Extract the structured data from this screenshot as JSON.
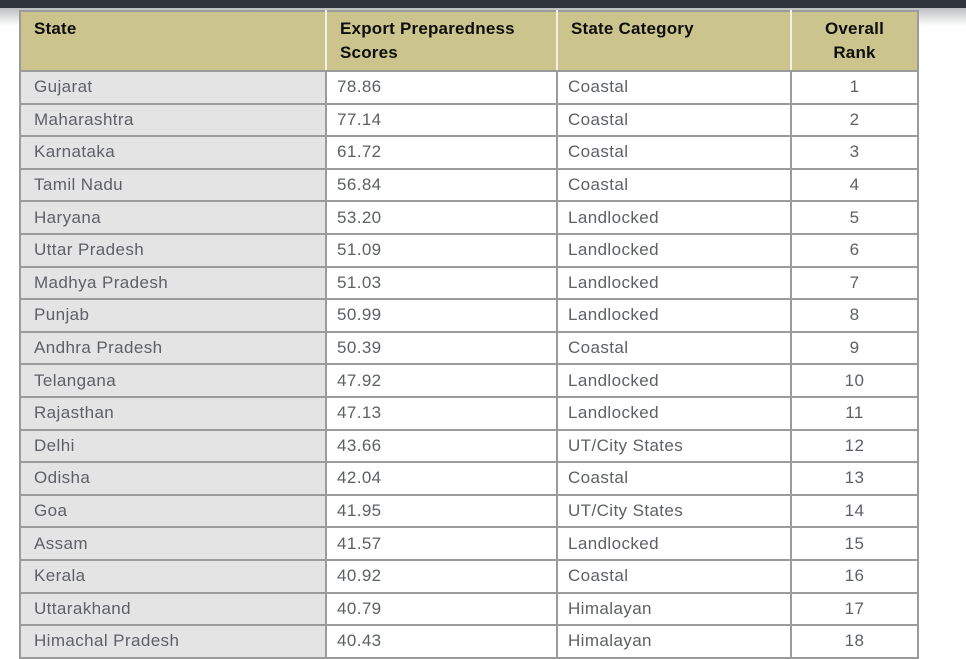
{
  "page": {
    "background_color": "#ffffff",
    "top_bar_color": "#30363b"
  },
  "colors": {
    "header_background": "#cbc48d",
    "header_text": "#0e0e0e",
    "state_cell_background": "#e4e4e5",
    "cell_background": "#ffffff",
    "grid_border": "#9b9b9b",
    "body_text": "#5d6065"
  },
  "table": {
    "header": {
      "state": "State",
      "scores": "Export Preparedness Scores",
      "category": "State Category",
      "rank": "Overall Rank"
    },
    "rows": [
      {
        "state": "Gujarat",
        "score": "78.86",
        "category": "Coastal",
        "rank": "1"
      },
      {
        "state": "Maharashtra",
        "score": "77.14",
        "category": "Coastal",
        "rank": "2"
      },
      {
        "state": "Karnataka",
        "score": "61.72",
        "category": "Coastal",
        "rank": "3"
      },
      {
        "state": "Tamil Nadu",
        "score": "56.84",
        "category": "Coastal",
        "rank": "4"
      },
      {
        "state": "Haryana",
        "score": "53.20",
        "category": "Landlocked",
        "rank": "5"
      },
      {
        "state": "Uttar Pradesh",
        "score": "51.09",
        "category": "Landlocked",
        "rank": "6"
      },
      {
        "state": "Madhya Pradesh",
        "score": "51.03",
        "category": "Landlocked",
        "rank": "7"
      },
      {
        "state": "Punjab",
        "score": "50.99",
        "category": "Landlocked",
        "rank": "8"
      },
      {
        "state": "Andhra Pradesh",
        "score": "50.39",
        "category": "Coastal",
        "rank": "9"
      },
      {
        "state": "Telangana",
        "score": "47.92",
        "category": "Landlocked",
        "rank": "10"
      },
      {
        "state": "Rajasthan",
        "score": "47.13",
        "category": "Landlocked",
        "rank": "11"
      },
      {
        "state": "Delhi",
        "score": "43.66",
        "category": "UT/City States",
        "rank": "12"
      },
      {
        "state": "Odisha",
        "score": "42.04",
        "category": "Coastal",
        "rank": "13"
      },
      {
        "state": "Goa",
        "score": "41.95",
        "category": "UT/City States",
        "rank": "14"
      },
      {
        "state": "Assam",
        "score": "41.57",
        "category": "Landlocked",
        "rank": "15"
      },
      {
        "state": "Kerala",
        "score": "40.92",
        "category": "Coastal",
        "rank": "16"
      },
      {
        "state": "Uttarakhand",
        "score": "40.79",
        "category": "Himalayan",
        "rank": "17"
      },
      {
        "state": "Himachal Pradesh",
        "score": "40.43",
        "category": "Himalayan",
        "rank": "18"
      }
    ],
    "partial_row_visible": true
  }
}
